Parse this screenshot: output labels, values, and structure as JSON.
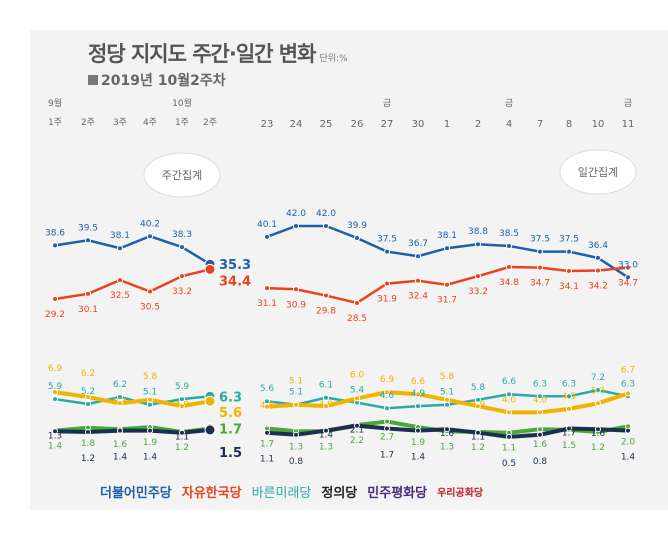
{
  "title": {
    "main": "정당 지지도 주간·일간 변화",
    "unit": "단위:%",
    "subtitle": "2019년 10월2주차"
  },
  "bubbles": {
    "weekly": "주간집계",
    "daily": "일간집계"
  },
  "legend": [
    "더불어민주당",
    "자유한국당",
    "바른미래당",
    "정의당",
    "민주평화당",
    "우리공화당"
  ],
  "chart_data": {
    "type": "line",
    "title": "정당 지지도 주간·일간 변화",
    "weekly": {
      "month_labels": [
        "9월",
        "",
        "",
        "",
        "10월",
        ""
      ],
      "categories": [
        "1주",
        "2주",
        "3주",
        "4주",
        "1주",
        "2주"
      ],
      "series": [
        {
          "name": "더불어민주당",
          "color": "#1f5fa8",
          "values": [
            38.6,
            39.5,
            38.1,
            40.2,
            38.3,
            35.3
          ]
        },
        {
          "name": "자유한국당",
          "color": "#e8431e",
          "values": [
            29.2,
            30.1,
            32.5,
            30.5,
            33.2,
            34.4
          ]
        },
        {
          "name": "바른미래당",
          "color": "#2aa9a9",
          "values": [
            5.9,
            5.2,
            6.2,
            5.1,
            5.9,
            6.3
          ]
        },
        {
          "name": "정의당",
          "color": "#f0b400",
          "values": [
            6.9,
            6.2,
            5.3,
            5.8,
            4.9,
            5.6
          ]
        },
        {
          "name": "민주평화당",
          "color": "#4aa83a",
          "values": [
            1.4,
            1.8,
            1.6,
            1.9,
            1.2,
            1.7
          ]
        },
        {
          "name": "우리공화당",
          "color": "#1c2f4f",
          "values": [
            1.3,
            1.2,
            1.4,
            1.4,
            1.1,
            1.5
          ]
        }
      ]
    },
    "daily": {
      "day_labels": [
        "",
        "",
        "",
        "",
        "금",
        "",
        "",
        "",
        "금",
        "",
        "",
        "",
        "금"
      ],
      "categories": [
        "23",
        "24",
        "25",
        "26",
        "27",
        "30",
        "1",
        "2",
        "4",
        "7",
        "8",
        "10",
        "11"
      ],
      "series": [
        {
          "name": "더불어민주당",
          "color": "#1f5fa8",
          "values": [
            40.1,
            42.0,
            42.0,
            39.9,
            37.5,
            36.7,
            38.1,
            38.8,
            38.5,
            37.5,
            37.5,
            36.4,
            33.0
          ]
        },
        {
          "name": "자유한국당",
          "color": "#e8431e",
          "values": [
            31.1,
            30.9,
            29.8,
            28.5,
            31.9,
            32.4,
            31.7,
            33.2,
            34.8,
            34.7,
            34.1,
            34.2,
            34.7
          ]
        },
        {
          "name": "바른미래당",
          "color": "#2aa9a9",
          "values": [
            5.6,
            5.1,
            6.1,
            5.4,
            4.6,
            4.9,
            5.1,
            5.8,
            6.6,
            6.3,
            6.3,
            7.2,
            6.3
          ]
        },
        {
          "name": "정의당",
          "color": "#f0b400",
          "values": [
            4.8,
            5.1,
            4.9,
            6.0,
            6.9,
            6.6,
            5.8,
            4.9,
            4.0,
            4.0,
            4.5,
            5.3,
            6.7
          ]
        },
        {
          "name": "민주평화당",
          "color": "#4aa83a",
          "values": [
            1.7,
            1.3,
            1.3,
            2.2,
            2.7,
            1.9,
            1.3,
            1.2,
            1.1,
            1.6,
            1.5,
            1.2,
            2.0
          ]
        },
        {
          "name": "우리공화당",
          "color": "#1c2f4f",
          "values": [
            1.1,
            0.8,
            1.4,
            2.1,
            1.7,
            1.4,
            1.6,
            1.1,
            0.5,
            0.8,
            1.7,
            1.6,
            1.4
          ]
        }
      ]
    }
  }
}
